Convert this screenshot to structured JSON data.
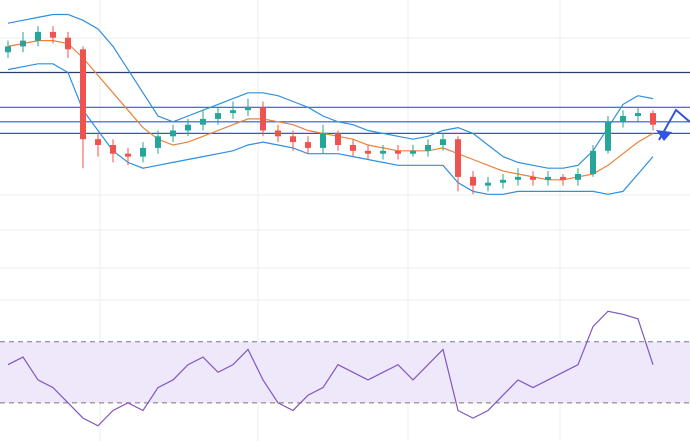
{
  "chart_data": {
    "type": "candlestick",
    "up_color": "#26a69a",
    "down_color": "#ef5350",
    "ylim": [
      0,
      100
    ],
    "open": [
      82,
      84,
      86,
      89,
      87,
      83,
      52,
      50,
      47,
      46,
      49,
      53,
      55,
      57,
      59,
      61,
      62,
      63,
      55,
      53,
      51,
      49,
      54,
      50,
      48,
      47,
      48,
      47,
      48,
      50,
      52,
      39,
      36,
      37,
      38,
      39,
      38,
      39,
      38,
      40,
      48,
      58,
      60,
      61
    ],
    "high": [
      86,
      89,
      91,
      91,
      89,
      84,
      54,
      52,
      49,
      51,
      55,
      57,
      59,
      62,
      63,
      65,
      66,
      65,
      57,
      55,
      53,
      57,
      55,
      52,
      50,
      50,
      50,
      50,
      52,
      54,
      53,
      41,
      39,
      40,
      42,
      41,
      41,
      40,
      42,
      50,
      60,
      62,
      63,
      62
    ],
    "low": [
      80,
      82,
      84,
      85,
      80,
      42,
      46,
      44,
      43,
      44,
      47,
      51,
      53,
      55,
      57,
      59,
      60,
      53,
      51,
      48,
      47,
      47,
      48,
      46,
      45,
      45,
      45,
      46,
      46,
      48,
      34,
      33,
      34,
      35,
      36,
      36,
      36,
      36,
      36,
      39,
      47,
      56,
      58,
      55
    ],
    "close": [
      84,
      86,
      89,
      87,
      83,
      52,
      50,
      47,
      46,
      49,
      53,
      55,
      57,
      59,
      61,
      62,
      63,
      55,
      53,
      51,
      49,
      54,
      50,
      48,
      47,
      48,
      47,
      48,
      50,
      52,
      39,
      36,
      37,
      38,
      39,
      38,
      39,
      38,
      40,
      48,
      58,
      60,
      61,
      57
    ],
    "lines": [
      {
        "color": "#2f8fe0",
        "values": [
          92,
          93,
          94,
          95,
          95,
          93,
          90,
          84,
          76,
          68,
          60,
          58,
          60,
          62,
          64,
          66,
          68,
          68,
          67,
          65,
          63,
          60,
          58,
          57,
          55,
          54,
          53,
          52,
          53,
          55,
          56,
          54,
          50,
          46,
          44,
          43,
          42,
          42,
          43,
          48,
          56,
          64,
          67,
          66
        ]
      },
      {
        "color": "#e8833a",
        "values": [
          84,
          85,
          86,
          86,
          85,
          80,
          74,
          68,
          62,
          56,
          52,
          50,
          51,
          53,
          55,
          57,
          59,
          59,
          58,
          57,
          55,
          54,
          53,
          52,
          50,
          49,
          48,
          48,
          48,
          49,
          47,
          45,
          43,
          41,
          40,
          39,
          38,
          38,
          39,
          40,
          43,
          47,
          51,
          54
        ]
      },
      {
        "color": "#2f8fe0",
        "values": [
          76,
          77,
          78,
          78,
          75,
          62,
          55,
          48,
          44,
          42,
          43,
          44,
          45,
          46,
          47,
          48,
          50,
          51,
          50,
          49,
          47,
          47,
          47,
          46,
          45,
          44,
          43,
          43,
          43,
          43,
          37,
          34,
          33,
          33,
          34,
          34,
          34,
          34,
          34,
          34,
          33,
          34,
          40,
          46
        ]
      }
    ],
    "hlines": [
      {
        "value": 75,
        "color": "#2c3e70"
      },
      {
        "value": 63,
        "color": "#3355dd"
      },
      {
        "value": 58,
        "color": "#3355dd"
      },
      {
        "value": 54,
        "color": "#3355dd"
      }
    ],
    "rsi": {
      "color": "#7e57c2",
      "ylim": [
        5,
        100
      ],
      "levels": [
        70,
        30
      ],
      "values": [
        55,
        60,
        45,
        40,
        30,
        20,
        15,
        25,
        30,
        25,
        40,
        45,
        55,
        60,
        50,
        55,
        65,
        45,
        30,
        25,
        35,
        40,
        55,
        50,
        45,
        50,
        55,
        45,
        55,
        65,
        25,
        20,
        25,
        35,
        45,
        40,
        45,
        50,
        55,
        80,
        90,
        88,
        85,
        55
      ]
    }
  }
}
